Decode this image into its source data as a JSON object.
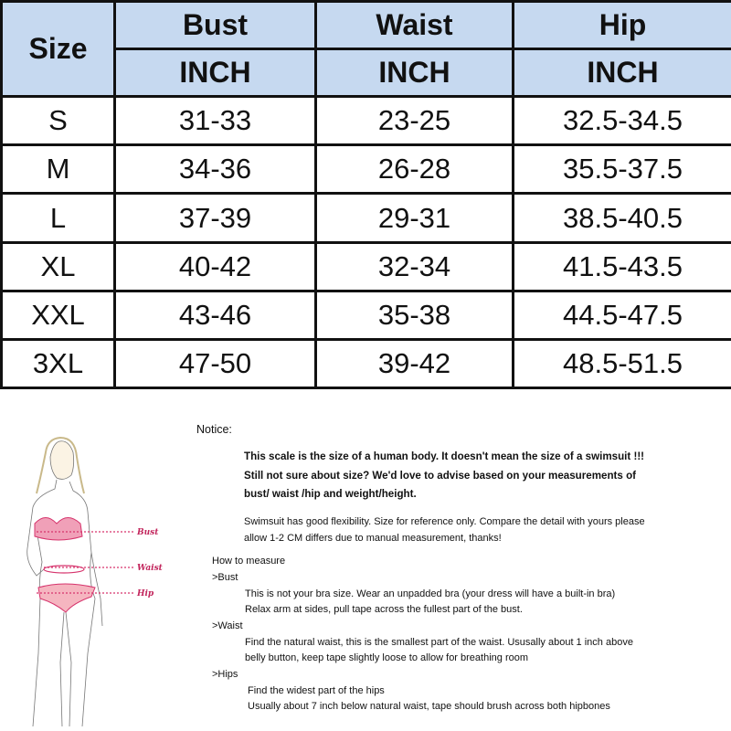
{
  "table": {
    "size_header": "Size",
    "columns": [
      {
        "name": "Bust",
        "unit": "INCH"
      },
      {
        "name": "Waist",
        "unit": "INCH"
      },
      {
        "name": "Hip",
        "unit": "INCH"
      }
    ],
    "rows": [
      {
        "size": "S",
        "bust": "31-33",
        "waist": "23-25",
        "hip": "32.5-34.5"
      },
      {
        "size": "M",
        "bust": "34-36",
        "waist": "26-28",
        "hip": "35.5-37.5"
      },
      {
        "size": "L",
        "bust": "37-39",
        "waist": "29-31",
        "hip": "38.5-40.5"
      },
      {
        "size": "XL",
        "bust": "40-42",
        "waist": "32-34",
        "hip": "41.5-43.5"
      },
      {
        "size": "XXL",
        "bust": "43-46",
        "waist": "35-38",
        "hip": "44.5-47.5"
      },
      {
        "size": "3XL",
        "bust": "47-50",
        "waist": "39-42",
        "hip": "48.5-51.5"
      }
    ],
    "header_color": "#c6d9f0"
  },
  "figure": {
    "labels": [
      "Bust",
      "Waist",
      "Hip"
    ],
    "accent_color": "#d6336c"
  },
  "notice": {
    "title": "Notice:",
    "bold_lines": [
      "This scale is the size of a human body. It doesn't mean the size of a swimsuit !!!",
      "Still not sure about size?  We'd love to advise based on your measurements of",
      "bust/ waist /hip and weight/height."
    ],
    "note_lines": [
      "Swimsuit has good flexibility. Size for reference only. Compare the detail with yours please",
      "allow 1-2 CM differs due to manual measurement, thanks!"
    ]
  },
  "how_to": {
    "title": "How to measure",
    "sections": [
      {
        "heading": ">Bust",
        "lines": [
          "This is not your bra size. Wear an unpadded bra (your dress will have a built-in bra)",
          "Relax arm at sides, pull tape across the fullest part of the bust."
        ]
      },
      {
        "heading": ">Waist",
        "lines": [
          "Find the natural waist, this is the smallest part of the waist. Ususally about 1 inch above",
          "belly button, keep tape slightly loose to allow for breathing room"
        ]
      },
      {
        "heading": ">Hips",
        "lines": [
          "Find the widest part of the hips",
          "Usually about 7 inch below natural waist, tape should brush across both hipbones"
        ]
      }
    ]
  }
}
